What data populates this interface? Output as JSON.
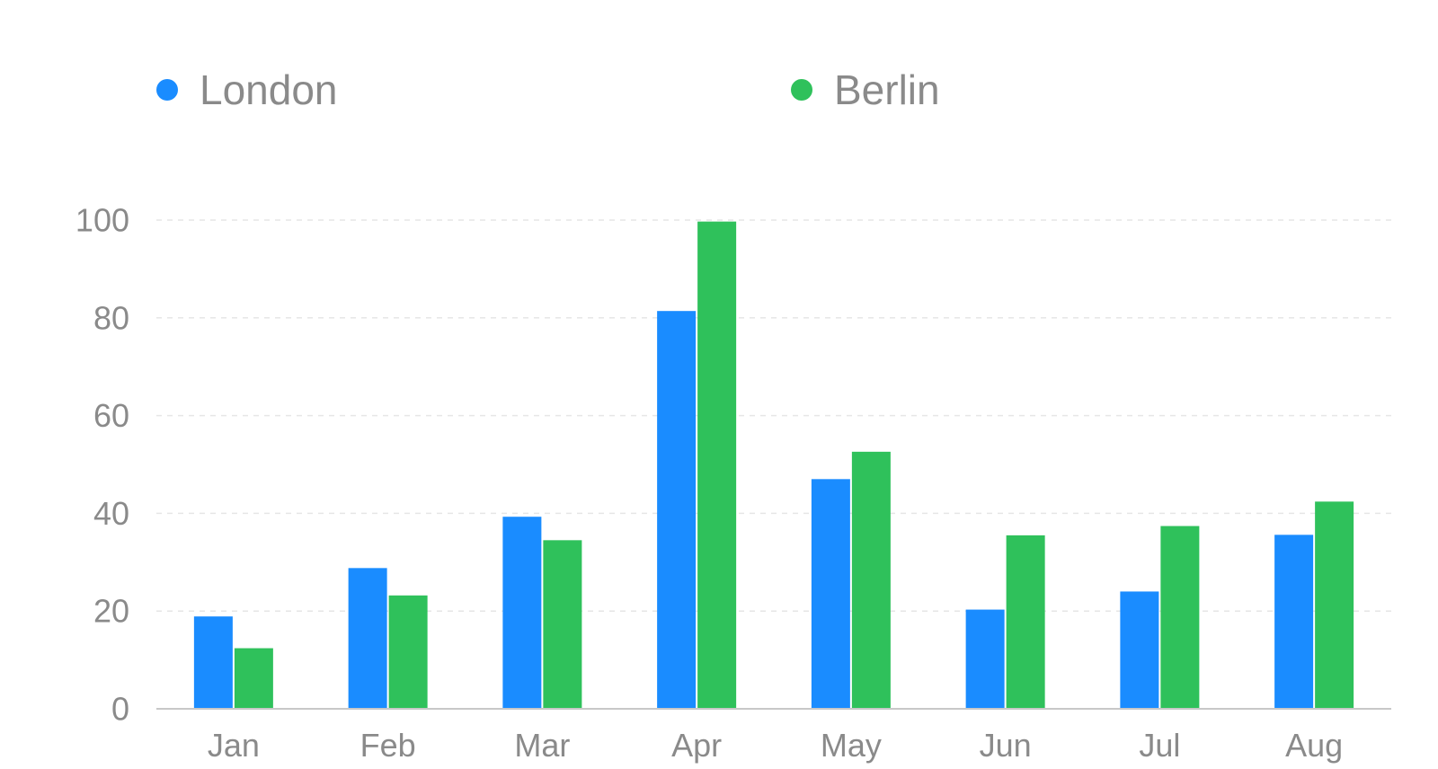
{
  "chart_data": {
    "type": "bar",
    "title": "",
    "xlabel": "",
    "ylabel": "",
    "categories": [
      "Jan",
      "Feb",
      "Mar",
      "Apr",
      "May",
      "Jun",
      "Jul",
      "Aug"
    ],
    "series": [
      {
        "name": "London",
        "color": "#1a8cff",
        "values": [
          18.9,
          28.8,
          39.3,
          81.4,
          47,
          20.3,
          24,
          35.6
        ]
      },
      {
        "name": "Berlin",
        "color": "#2fc15b",
        "values": [
          12.4,
          23.2,
          34.5,
          99.7,
          52.6,
          35.5,
          37.4,
          42.4
        ]
      }
    ],
    "ylim": [
      0,
      100
    ],
    "yticks": [
      "0",
      "20",
      "40",
      "60",
      "80",
      "100"
    ],
    "grid": true,
    "legend_position": "top"
  }
}
